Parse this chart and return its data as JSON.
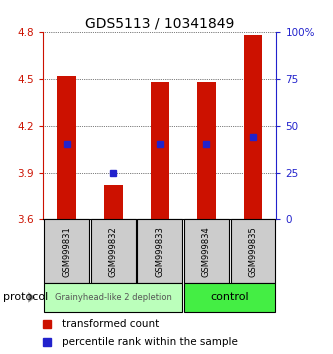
{
  "title": "GDS5113 / 10341849",
  "samples": [
    "GSM999831",
    "GSM999832",
    "GSM999833",
    "GSM999834",
    "GSM999835"
  ],
  "bar_tops": [
    4.52,
    3.82,
    4.48,
    4.48,
    4.78
  ],
  "bar_base": 3.6,
  "blue_markers": [
    4.08,
    3.9,
    4.08,
    4.08,
    4.13
  ],
  "ylim": [
    3.6,
    4.8
  ],
  "right_ylim": [
    0,
    100
  ],
  "left_yticks": [
    3.6,
    3.9,
    4.2,
    4.5,
    4.8
  ],
  "right_yticks": [
    0,
    25,
    50,
    75,
    100
  ],
  "right_yticklabels": [
    "0",
    "25",
    "50",
    "75",
    "100%"
  ],
  "bar_color": "#cc1100",
  "blue_color": "#2222cc",
  "group1_label": "Grainyhead-like 2 depletion",
  "group2_label": "control",
  "group1_color": "#bbffbb",
  "group2_color": "#44ee44",
  "sample_box_color": "#cccccc",
  "legend_red_label": "transformed count",
  "legend_blue_label": "percentile rank within the sample",
  "protocol_label": "protocol",
  "background_color": "#ffffff",
  "plot_bg_color": "#ffffff",
  "bar_width": 0.4,
  "title_fontsize": 10,
  "tick_fontsize": 7.5,
  "sample_fontsize": 6,
  "legend_fontsize": 7.5
}
